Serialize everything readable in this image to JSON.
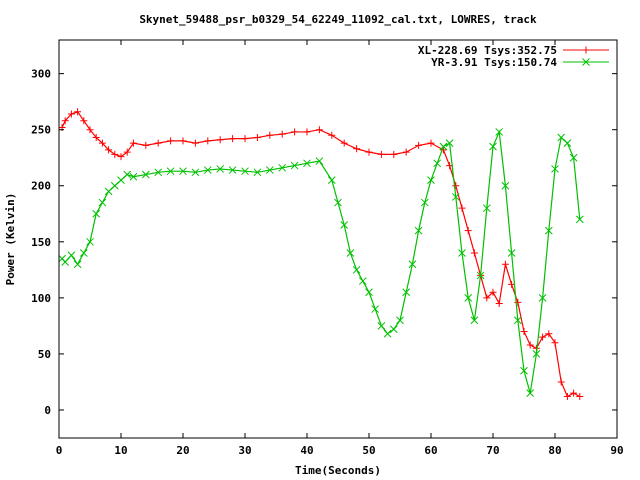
{
  "chart_data": {
    "type": "scatter",
    "title": "Skynet_59488_psr_b0329_54_62249_11092_cal.txt, LOWRES, track",
    "xlabel": "Time(Seconds)",
    "ylabel": "Power (Kelvin)",
    "xlim": [
      0,
      90
    ],
    "ylim": [
      -25,
      330
    ],
    "xticks": [
      0,
      10,
      20,
      30,
      40,
      50,
      60,
      70,
      80,
      90
    ],
    "yticks": [
      0,
      50,
      100,
      150,
      200,
      250,
      300
    ],
    "grid": false,
    "legend_position": "top-right",
    "series": [
      {
        "name": "XL-228.69 Tsys:352.75",
        "color": "#ff0000",
        "marker": "plus",
        "x": [
          0.5,
          1,
          2,
          3,
          4,
          5,
          6,
          7,
          8,
          9,
          10,
          11,
          12,
          14,
          16,
          18,
          20,
          22,
          24,
          26,
          28,
          30,
          32,
          34,
          36,
          38,
          40,
          42,
          44,
          46,
          48,
          50,
          52,
          54,
          56,
          58,
          60,
          62,
          63,
          64,
          65,
          66,
          67,
          68,
          69,
          70,
          71,
          72,
          73,
          74,
          75,
          76,
          77,
          78,
          79,
          80,
          81,
          82,
          83,
          84
        ],
        "y": [
          252,
          258,
          264,
          266,
          258,
          250,
          243,
          238,
          232,
          228,
          226,
          230,
          238,
          236,
          238,
          240,
          240,
          238,
          240,
          241,
          242,
          242,
          243,
          245,
          246,
          248,
          248,
          250,
          245,
          238,
          233,
          230,
          228,
          228,
          230,
          236,
          238,
          232,
          218,
          200,
          180,
          160,
          140,
          120,
          100,
          105,
          95,
          130,
          112,
          96,
          70,
          58,
          55,
          65,
          68,
          60,
          25,
          12,
          15,
          12
        ]
      },
      {
        "name": "YR-3.91 Tsys:150.74",
        "color": "#00c000",
        "marker": "x",
        "x": [
          0.5,
          1,
          2,
          3,
          4,
          5,
          6,
          7,
          8,
          9,
          10,
          11,
          12,
          14,
          16,
          18,
          20,
          22,
          24,
          26,
          28,
          30,
          32,
          34,
          36,
          38,
          40,
          42,
          44,
          45,
          46,
          47,
          48,
          49,
          50,
          51,
          52,
          53,
          54,
          55,
          56,
          57,
          58,
          59,
          60,
          61,
          62,
          63,
          64,
          65,
          66,
          67,
          68,
          69,
          70,
          71,
          72,
          73,
          74,
          75,
          76,
          77,
          78,
          79,
          80,
          81,
          82,
          83,
          84
        ],
        "y": [
          135,
          132,
          138,
          130,
          140,
          150,
          175,
          185,
          195,
          200,
          205,
          210,
          208,
          210,
          212,
          213,
          213,
          212,
          214,
          215,
          214,
          213,
          212,
          214,
          216,
          218,
          220,
          222,
          205,
          185,
          165,
          140,
          125,
          115,
          105,
          90,
          75,
          68,
          72,
          80,
          105,
          130,
          160,
          185,
          205,
          220,
          235,
          238,
          190,
          140,
          100,
          80,
          120,
          180,
          235,
          248,
          200,
          140,
          80,
          35,
          15,
          50,
          100,
          160,
          215,
          243,
          238,
          225,
          170
        ]
      }
    ]
  }
}
